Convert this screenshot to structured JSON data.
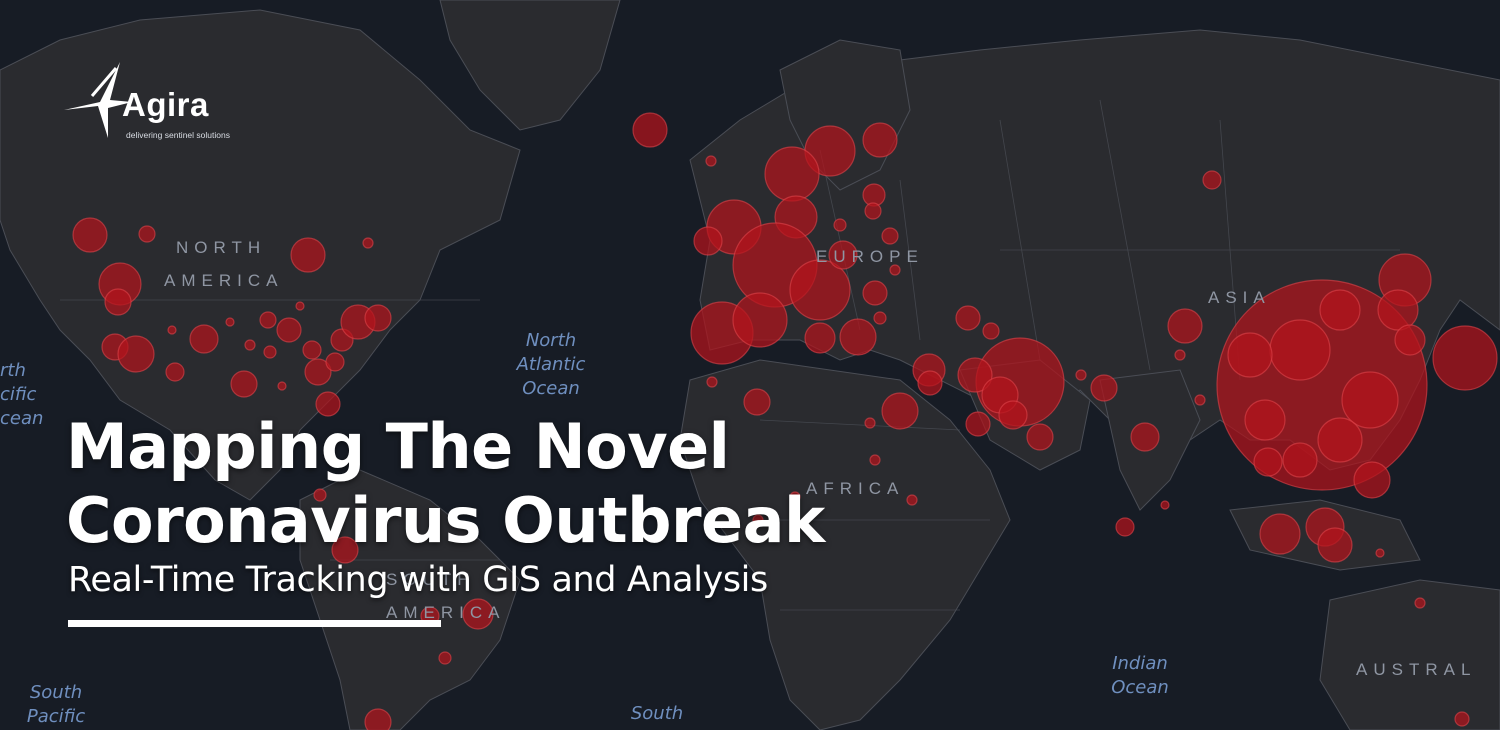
{
  "brand": {
    "name": "Agira",
    "tagline": "delivering sentinel solutions"
  },
  "headline": {
    "line1": "Mapping The Novel",
    "line2": "Coronavirus Outbreak",
    "subtitle": "Real-Time Tracking with GIS and Analysis"
  },
  "map_labels": {
    "north_america_1": "NORTH",
    "north_america_2": "AMERICA",
    "europe": "EUROPE",
    "asia": "ASIA",
    "africa": "AFRICA",
    "south_america_1": "SOUTH",
    "south_america_2": "AMERICA",
    "australia": "AUSTRAL",
    "north_atlantic": "North\nAtlantic\nOcean",
    "north_pacific": "rth\ncific\ncean",
    "south_pacific": "South\nPacific",
    "indian_ocean": "Indian\nOcean",
    "south_atlantic": "South"
  },
  "colors": {
    "background": "#171c25",
    "land": "#2a2b2f",
    "border": "#4a4d55",
    "marker_fill": "#b3141c",
    "marker_stroke": "#e0454b",
    "headline_text": "#ffffff"
  }
}
